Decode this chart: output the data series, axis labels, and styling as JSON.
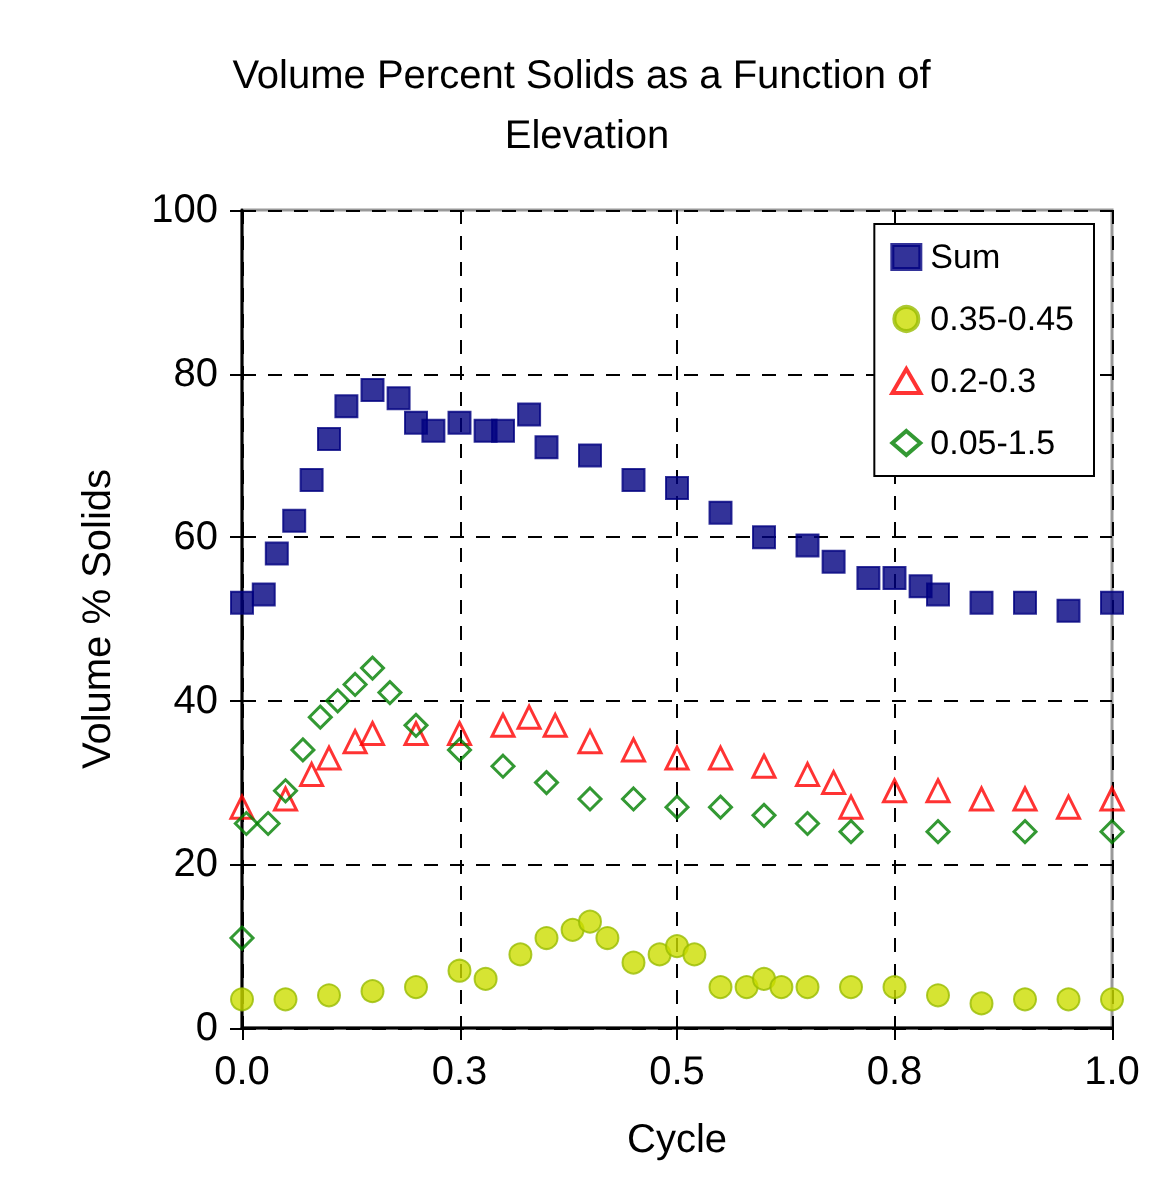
{
  "chart_data": {
    "type": "scatter",
    "title": "Volume Percent Solids as a Function of Elevation",
    "xlabel": "Cycle",
    "ylabel": "Volume % Solids",
    "xlim": [
      0,
      1
    ],
    "xticks": [
      {
        "value": 0,
        "label": "0.0"
      },
      {
        "value": 0.25,
        "label": "0.3"
      },
      {
        "value": 0.5,
        "label": "0.5"
      },
      {
        "value": 0.75,
        "label": "0.8"
      },
      {
        "value": 1,
        "label": "1.0"
      }
    ],
    "ylim": [
      0,
      100
    ],
    "yticks": [
      0,
      20,
      40,
      60,
      80,
      100
    ],
    "grid": true,
    "legend": "top right",
    "series": [
      {
        "name": "Sum",
        "color": "#000080",
        "marker": "square",
        "x": [
          0,
          0.025,
          0.04,
          0.06,
          0.08,
          0.1,
          0.12,
          0.15,
          0.18,
          0.2,
          0.22,
          0.25,
          0.28,
          0.3,
          0.33,
          0.35,
          0.4,
          0.45,
          0.5,
          0.55,
          0.6,
          0.65,
          0.68,
          0.72,
          0.75,
          0.78,
          0.8,
          0.85,
          0.9,
          0.95,
          1
        ],
        "values": [
          52,
          53,
          58,
          62,
          67,
          72,
          76,
          78,
          77,
          74,
          73,
          74,
          73,
          73,
          75,
          71,
          70,
          67,
          66,
          63,
          60,
          59,
          57,
          55,
          55,
          54,
          53,
          52,
          52,
          51,
          52
        ]
      },
      {
        "name": "0.35-0.45",
        "color": "#ccdd00",
        "marker": "circle",
        "x": [
          0,
          0.05,
          0.1,
          0.15,
          0.2,
          0.25,
          0.28,
          0.32,
          0.35,
          0.38,
          0.4,
          0.42,
          0.45,
          0.48,
          0.5,
          0.52,
          0.55,
          0.58,
          0.6,
          0.62,
          0.65,
          0.7,
          0.75,
          0.8,
          0.85,
          0.9,
          0.95,
          1
        ],
        "values": [
          3.5,
          3.5,
          4,
          4.5,
          5,
          7,
          6,
          9,
          11,
          12,
          13,
          11,
          8,
          9,
          10,
          9,
          5,
          5,
          6,
          5,
          5,
          5,
          5,
          4,
          3,
          3.5,
          3.5,
          3.5
        ]
      },
      {
        "name": "0.2-0.3",
        "color": "#ff0000",
        "marker": "triangle",
        "x": [
          0,
          0.05,
          0.08,
          0.1,
          0.13,
          0.15,
          0.2,
          0.25,
          0.3,
          0.33,
          0.36,
          0.4,
          0.45,
          0.5,
          0.55,
          0.6,
          0.65,
          0.68,
          0.7,
          0.75,
          0.8,
          0.85,
          0.9,
          0.95,
          1
        ],
        "values": [
          27,
          28,
          31,
          33,
          35,
          36,
          36,
          36,
          37,
          38,
          37,
          35,
          34,
          33,
          33,
          32,
          31,
          30,
          27,
          29,
          29,
          28,
          28,
          27,
          28
        ]
      },
      {
        "name": "0.05-1.5",
        "color": "#008000",
        "marker": "diamond",
        "x": [
          0,
          0.005,
          0.03,
          0.05,
          0.07,
          0.09,
          0.11,
          0.13,
          0.15,
          0.17,
          0.2,
          0.25,
          0.3,
          0.35,
          0.4,
          0.45,
          0.5,
          0.55,
          0.6,
          0.65,
          0.7,
          0.8,
          0.9,
          1
        ],
        "values": [
          11,
          25,
          25,
          29,
          34,
          38,
          40,
          42,
          44,
          41,
          37,
          34,
          32,
          30,
          28,
          28,
          27,
          27,
          26,
          25,
          24,
          24,
          24,
          24
        ]
      }
    ]
  }
}
